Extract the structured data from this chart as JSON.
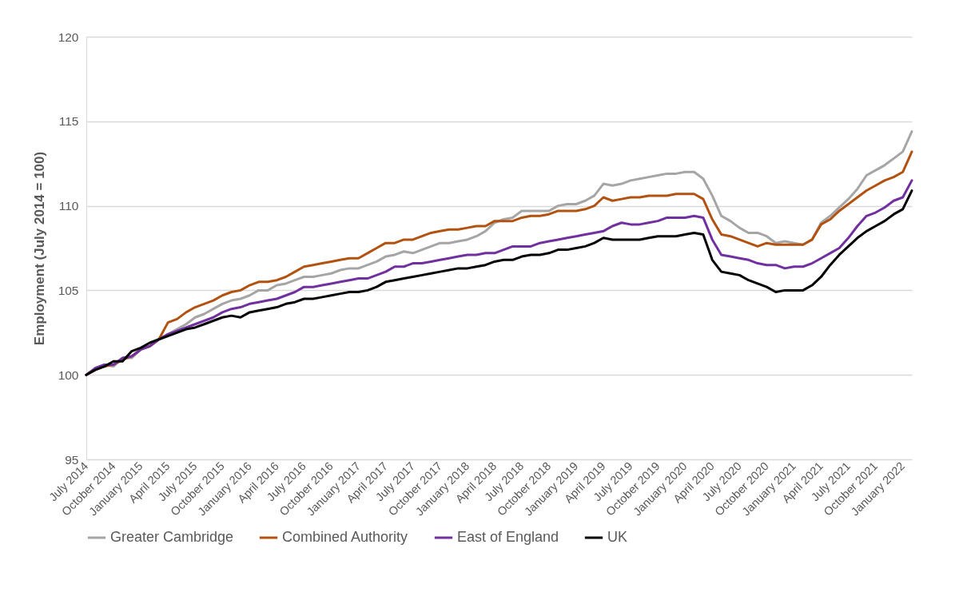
{
  "chart_data": {
    "type": "line",
    "ylabel": "Employment (July 2014 = 100)",
    "categories": [
      "July 2014",
      null,
      null,
      "October 2014",
      null,
      null,
      "January 2015",
      null,
      null,
      "April 2015",
      null,
      null,
      "July 2015",
      null,
      null,
      "October 2015",
      null,
      null,
      "January 2016",
      null,
      null,
      "April 2016",
      null,
      null,
      "July 2016",
      null,
      null,
      "October 2016",
      null,
      null,
      "January 2017",
      null,
      null,
      "April 2017",
      null,
      null,
      "July 2017",
      null,
      null,
      "October 2017",
      null,
      null,
      "January 2018",
      null,
      null,
      "April 2018",
      null,
      null,
      "July 2018",
      null,
      null,
      "October 2018",
      null,
      null,
      "January 2019",
      null,
      null,
      "April 2019",
      null,
      null,
      "July 2019",
      null,
      null,
      "October 2019",
      null,
      null,
      "January 2020",
      null,
      null,
      "April 2020",
      null,
      null,
      "July 2020",
      null,
      null,
      "October 2020",
      null,
      null,
      "January 2021",
      null,
      null,
      "April 2021",
      null,
      null,
      "July 2021",
      null,
      null,
      "October 2021",
      null,
      null,
      "January 2022",
      null
    ],
    "series": [
      {
        "name": "Greater Cambridge",
        "color": "#a5a5a5",
        "values": [
          100.0,
          100.4,
          100.6,
          100.5,
          101.0,
          101.0,
          101.5,
          101.7,
          102.1,
          102.4,
          102.7,
          103.0,
          103.4,
          103.6,
          103.9,
          104.2,
          104.4,
          104.5,
          104.7,
          105.0,
          105.0,
          105.3,
          105.4,
          105.6,
          105.8,
          105.8,
          105.9,
          106.0,
          106.2,
          106.3,
          106.3,
          106.5,
          106.7,
          107.0,
          107.1,
          107.3,
          107.2,
          107.4,
          107.6,
          107.8,
          107.8,
          107.9,
          108.0,
          108.2,
          108.5,
          109.0,
          109.2,
          109.3,
          109.7,
          109.7,
          109.7,
          109.7,
          110.0,
          110.1,
          110.1,
          110.3,
          110.6,
          111.3,
          111.2,
          111.3,
          111.5,
          111.6,
          111.7,
          111.8,
          111.9,
          111.9,
          112.0,
          112.0,
          111.6,
          110.6,
          109.4,
          109.1,
          108.7,
          108.4,
          108.4,
          108.2,
          107.8,
          107.9,
          107.8,
          107.7,
          108.0,
          109.0,
          109.4,
          109.9,
          110.4,
          111.0,
          111.8,
          112.1,
          112.4,
          112.8,
          113.2,
          114.4
        ]
      },
      {
        "name": "Combined Authority",
        "color": "#b35210",
        "values": [
          100.0,
          100.3,
          100.5,
          100.6,
          100.9,
          101.1,
          101.5,
          101.7,
          102.1,
          103.1,
          103.3,
          103.7,
          104.0,
          104.2,
          104.4,
          104.7,
          104.9,
          105.0,
          105.3,
          105.5,
          105.5,
          105.6,
          105.8,
          106.1,
          106.4,
          106.5,
          106.6,
          106.7,
          106.8,
          106.9,
          106.9,
          107.2,
          107.5,
          107.8,
          107.8,
          108.0,
          108.0,
          108.2,
          108.4,
          108.5,
          108.6,
          108.6,
          108.7,
          108.8,
          108.8,
          109.1,
          109.1,
          109.1,
          109.3,
          109.4,
          109.4,
          109.5,
          109.7,
          109.7,
          109.7,
          109.8,
          110.0,
          110.5,
          110.3,
          110.4,
          110.5,
          110.5,
          110.6,
          110.6,
          110.6,
          110.7,
          110.7,
          110.7,
          110.4,
          109.2,
          108.3,
          108.2,
          108.0,
          107.8,
          107.6,
          107.8,
          107.7,
          107.7,
          107.7,
          107.7,
          108.0,
          108.9,
          109.2,
          109.7,
          110.1,
          110.5,
          110.9,
          111.2,
          111.5,
          111.7,
          112.0,
          113.2
        ]
      },
      {
        "name": "East of England",
        "color": "#7030a0",
        "values": [
          100.0,
          100.4,
          100.6,
          100.6,
          101.0,
          101.1,
          101.5,
          101.7,
          102.1,
          102.4,
          102.6,
          102.8,
          103.0,
          103.2,
          103.4,
          103.7,
          103.9,
          104.0,
          104.2,
          104.3,
          104.4,
          104.5,
          104.7,
          104.9,
          105.2,
          105.2,
          105.3,
          105.4,
          105.5,
          105.6,
          105.7,
          105.7,
          105.9,
          106.1,
          106.4,
          106.4,
          106.6,
          106.6,
          106.7,
          106.8,
          106.9,
          107.0,
          107.1,
          107.1,
          107.2,
          107.2,
          107.4,
          107.6,
          107.6,
          107.6,
          107.8,
          107.9,
          108.0,
          108.1,
          108.2,
          108.3,
          108.4,
          108.5,
          108.8,
          109.0,
          108.9,
          108.9,
          109.0,
          109.1,
          109.3,
          109.3,
          109.3,
          109.4,
          109.3,
          108.0,
          107.1,
          107.0,
          106.9,
          106.8,
          106.6,
          106.5,
          106.5,
          106.3,
          106.4,
          106.4,
          106.6,
          106.9,
          107.2,
          107.5,
          108.1,
          108.8,
          109.4,
          109.6,
          109.9,
          110.3,
          110.5,
          111.5
        ]
      },
      {
        "name": "UK",
        "color": "#000000",
        "values": [
          100.0,
          100.3,
          100.5,
          100.8,
          100.8,
          101.4,
          101.6,
          101.9,
          102.1,
          102.3,
          102.5,
          102.7,
          102.8,
          103.0,
          103.2,
          103.4,
          103.5,
          103.4,
          103.7,
          103.8,
          103.9,
          104.0,
          104.2,
          104.3,
          104.5,
          104.5,
          104.6,
          104.7,
          104.8,
          104.9,
          104.9,
          105.0,
          105.2,
          105.5,
          105.6,
          105.7,
          105.8,
          105.9,
          106.0,
          106.1,
          106.2,
          106.3,
          106.3,
          106.4,
          106.5,
          106.7,
          106.8,
          106.8,
          107.0,
          107.1,
          107.1,
          107.2,
          107.4,
          107.4,
          107.5,
          107.6,
          107.8,
          108.1,
          108.0,
          108.0,
          108.0,
          108.0,
          108.1,
          108.2,
          108.2,
          108.2,
          108.3,
          108.4,
          108.3,
          106.8,
          106.1,
          106.0,
          105.9,
          105.6,
          105.4,
          105.2,
          104.9,
          105.0,
          105.0,
          105.0,
          105.3,
          105.8,
          106.5,
          107.1,
          107.6,
          108.1,
          108.5,
          108.8,
          109.1,
          109.5,
          109.8,
          110.9
        ]
      }
    ],
    "ylim": [
      95,
      120
    ],
    "yticks": [
      95,
      100,
      105,
      110,
      115,
      120
    ],
    "grid": "y",
    "legend": "bottom"
  }
}
